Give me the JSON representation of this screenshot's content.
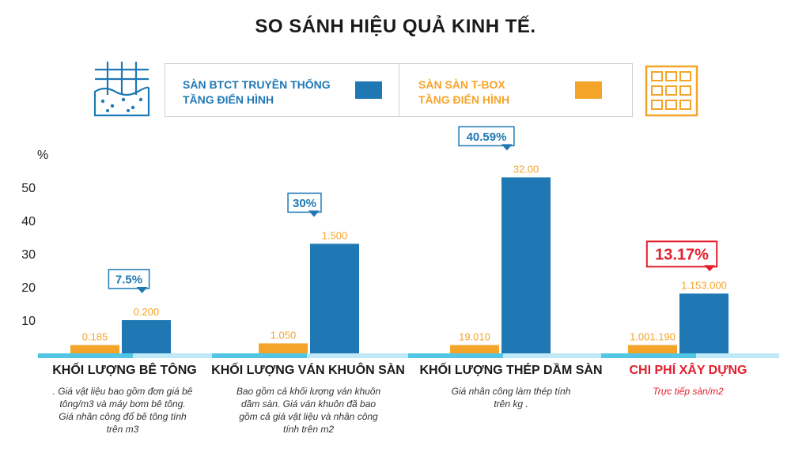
{
  "title": "SO SÁNH HIỆU QUẢ KINH TẾ.",
  "legend": {
    "traditional_line1": "SÀN BTCT TRUYỀN THỐNG",
    "traditional_line2": "TẦNG ĐIỂN HÌNH",
    "tbox_line1": "SÀN SÀN T-BOX",
    "tbox_line2": "TẦNG ĐIỂN HÌNH"
  },
  "icons": {
    "left": "concrete-slab-grid-icon",
    "right": "tbox-grid-icon"
  },
  "colors": {
    "blue": "#1f78b4",
    "orange": "#f5a42a",
    "red": "#e31e2d",
    "band_light": "#bfe9f7",
    "band_dark": "#53c6e6"
  },
  "chart_data": {
    "type": "bar",
    "ylabel": "%",
    "ylim": [
      0,
      55
    ],
    "yticks": [
      10,
      20,
      30,
      40,
      50
    ],
    "categories": [
      "KHỐI LƯỢNG BÊ TÔNG",
      "KHỐI LƯỢNG VÁN KHUÔN SÀN",
      "KHỐI LƯỢNG THÉP DẦM SÀN",
      "CHI PHÍ XÂY DỰNG"
    ],
    "series": [
      {
        "name": "SÀN BTCT TRUYỀN THỐNG TẦNG ĐIỂN HÌNH",
        "values": [
          10,
          33,
          53,
          18
        ],
        "labels": [
          "0.200",
          "1.500",
          "32.00",
          "1.153.000"
        ]
      },
      {
        "name": "SÀN SÀN T-BOX TẦNG ĐIỂN HÌNH",
        "values": [
          2.5,
          3,
          2.5,
          2.5
        ],
        "labels": [
          "0.185",
          "1.050",
          "19.010",
          "1.001.190"
        ]
      }
    ],
    "savings": [
      "7.5%",
      "30%",
      "40.59%",
      "13.17%"
    ],
    "notes": [
      [
        ". Giá vật liệu bao gồm đơn giá bê",
        "tông/m3 và máy bơm bê tông.",
        "Giá nhân công đổ bê tông tính",
        "trên m3"
      ],
      [
        "Bao gồm cả khối lượng ván khuôn",
        "dầm sàn. Giá ván khuôn đã bao",
        "gồm cả giá vật liệu và nhân công",
        "tính trên m2"
      ],
      [
        "Giá nhân công làm thép tính",
        "trên kg ."
      ],
      [
        "Trực tiếp sàn/m2"
      ]
    ]
  }
}
